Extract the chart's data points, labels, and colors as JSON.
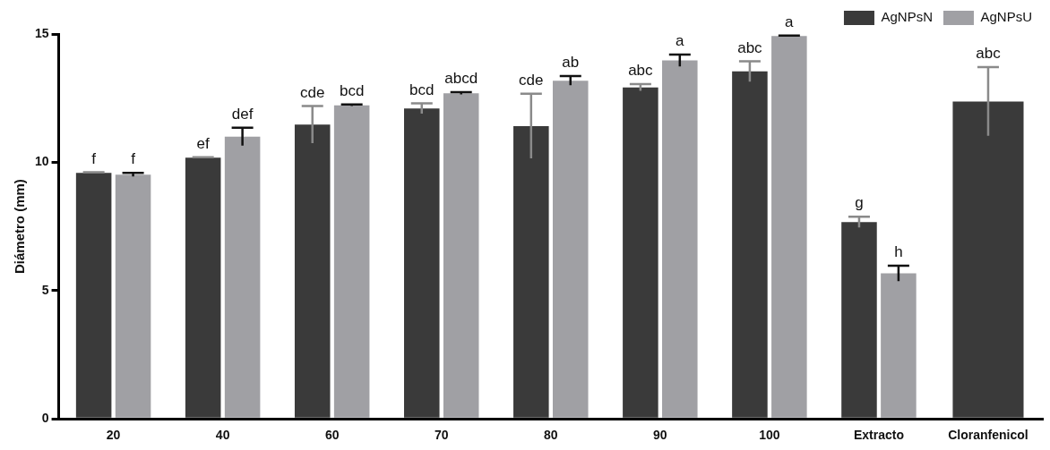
{
  "chart_data": {
    "type": "bar",
    "ylabel": "Diámetro (mm)",
    "categories": [
      "20",
      "40",
      "60",
      "70",
      "80",
      "90",
      "100",
      "Extracto",
      "Cloranfenicol"
    ],
    "series": [
      {
        "name": "AgNPsN",
        "color": "#3a3a3a",
        "values": [
          9.59,
          10.18,
          11.47,
          12.1,
          11.41,
          12.92,
          13.54,
          7.67,
          12.37
        ],
        "errors": [
          0.02,
          0.02,
          0.72,
          0.2,
          1.26,
          0.13,
          0.4,
          0.21,
          1.34
        ],
        "value_labels": [
          "f",
          "ef",
          "cde",
          "bcd",
          "cde",
          "abc",
          "abc",
          "g",
          "abc"
        ]
      },
      {
        "name": "AgNPsU",
        "color": "#a0a0a4",
        "values": [
          9.52,
          11.0,
          12.22,
          12.69,
          13.18,
          13.97,
          14.92,
          5.67,
          null
        ],
        "errors": [
          0.07,
          0.35,
          0.03,
          0.04,
          0.18,
          0.23,
          0.02,
          0.3,
          null
        ],
        "value_labels": [
          "f",
          "def",
          "bcd",
          "abcd",
          "ab",
          "a",
          "a",
          "h",
          null
        ]
      }
    ],
    "ylim": [
      0,
      15
    ],
    "yticks": [
      0,
      5,
      10,
      15
    ],
    "grid": false,
    "legend": "top right"
  }
}
